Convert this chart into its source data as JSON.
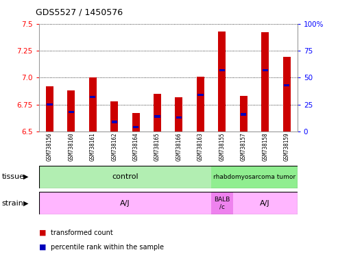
{
  "title": "GDS5527 / 1450576",
  "samples": [
    "GSM738156",
    "GSM738160",
    "GSM738161",
    "GSM738162",
    "GSM738164",
    "GSM738165",
    "GSM738166",
    "GSM738163",
    "GSM738155",
    "GSM738157",
    "GSM738158",
    "GSM738159"
  ],
  "red_values": [
    6.92,
    6.88,
    7.0,
    6.78,
    6.67,
    6.85,
    6.82,
    7.01,
    7.43,
    6.83,
    7.42,
    7.19
  ],
  "blue_values": [
    6.75,
    6.68,
    6.82,
    6.59,
    6.54,
    6.64,
    6.63,
    6.84,
    7.07,
    6.66,
    7.07,
    6.93
  ],
  "ylim_left": [
    6.5,
    7.5
  ],
  "ylim_right": [
    0,
    100
  ],
  "y_ticks_left": [
    6.5,
    6.75,
    7.0,
    7.25,
    7.5
  ],
  "y_ticks_right": [
    0,
    25,
    50,
    75,
    100
  ],
  "legend_red": "transformed count",
  "legend_blue": "percentile rank within the sample",
  "bar_width": 0.35,
  "red_color": "#CC0000",
  "blue_color": "#0000BB"
}
